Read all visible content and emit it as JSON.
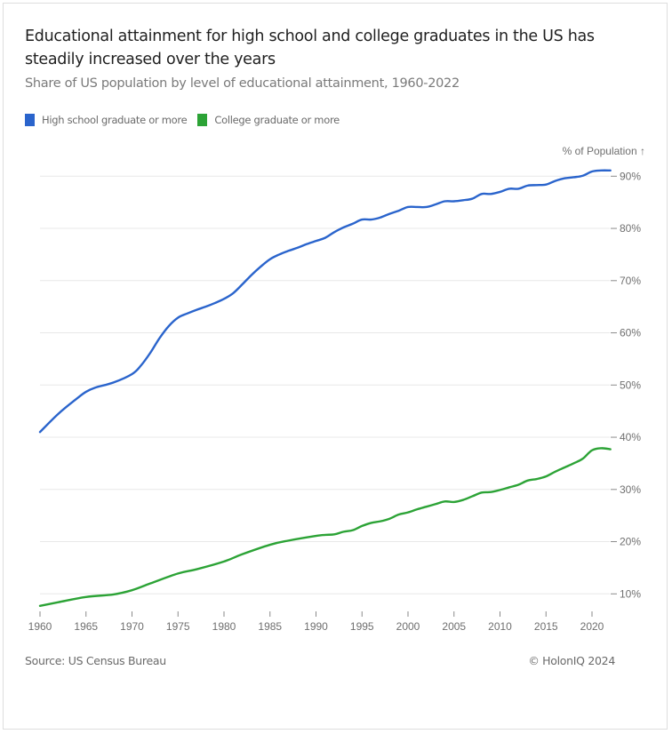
{
  "header": {
    "title": "Educational attainment for high school and college graduates in the US has steadily increased over the years",
    "subtitle": "Share of US population by level of educational attainment, 1960-2022"
  },
  "legend": [
    {
      "label": "High school graduate or more",
      "color": "#2a64cc"
    },
    {
      "label": "College graduate or more",
      "color": "#2ca336"
    }
  ],
  "footer": {
    "source": "Source: US Census Bureau",
    "copyright": "© HolonIQ 2024"
  },
  "chart_data": {
    "type": "line",
    "title": "Educational attainment for high school and college graduates in the US has steadily increased over the years",
    "subtitle": "Share of US population by level of educational attainment, 1960-2022",
    "xlabel": "",
    "ylabel": "% of Population ↑",
    "xlim": [
      1960,
      2022
    ],
    "ylim": [
      7,
      92
    ],
    "x_ticks": [
      1960,
      1965,
      1970,
      1975,
      1980,
      1985,
      1990,
      1995,
      2000,
      2005,
      2010,
      2015,
      2020
    ],
    "y_ticks": [
      10,
      20,
      30,
      40,
      50,
      60,
      70,
      80,
      90
    ],
    "y_tick_suffix": "%",
    "y_axis_position": "right",
    "grid": true,
    "legend_position": "top-left",
    "series": [
      {
        "name": "High school graduate or more",
        "color": "#2a64cc",
        "x": [
          1960,
          1962,
          1964,
          1965,
          1966,
          1968,
          1970,
          1971,
          1972,
          1973,
          1974,
          1975,
          1976,
          1977,
          1978,
          1979,
          1980,
          1981,
          1982,
          1983,
          1984,
          1985,
          1986,
          1987,
          1988,
          1989,
          1990,
          1991,
          1992,
          1993,
          1994,
          1995,
          1996,
          1997,
          1998,
          1999,
          2000,
          2001,
          2002,
          2003,
          2004,
          2005,
          2006,
          2007,
          2008,
          2009,
          2010,
          2011,
          2012,
          2013,
          2014,
          2015,
          2016,
          2017,
          2018,
          2019,
          2020,
          2021,
          2022
        ],
        "values": [
          41.0,
          44.5,
          47.4,
          48.7,
          49.5,
          50.5,
          52.1,
          53.8,
          56.2,
          59.0,
          61.3,
          62.9,
          63.7,
          64.4,
          65.0,
          65.7,
          66.5,
          67.6,
          69.3,
          71.1,
          72.7,
          74.1,
          75.0,
          75.7,
          76.3,
          77.0,
          77.6,
          78.2,
          79.3,
          80.2,
          80.9,
          81.7,
          81.7,
          82.1,
          82.8,
          83.4,
          84.1,
          84.1,
          84.1,
          84.6,
          85.2,
          85.2,
          85.4,
          85.7,
          86.6,
          86.6,
          87.0,
          87.6,
          87.6,
          88.2,
          88.3,
          88.4,
          89.1,
          89.6,
          89.8,
          90.1,
          90.9,
          91.1,
          91.1
        ]
      },
      {
        "name": "College graduate or more",
        "color": "#2ca336",
        "x": [
          1960,
          1962,
          1965,
          1968,
          1970,
          1972,
          1975,
          1977,
          1980,
          1982,
          1985,
          1987,
          1990,
          1991,
          1992,
          1993,
          1994,
          1995,
          1996,
          1997,
          1998,
          1999,
          2000,
          2001,
          2002,
          2003,
          2004,
          2005,
          2006,
          2007,
          2008,
          2009,
          2010,
          2011,
          2012,
          2013,
          2014,
          2015,
          2016,
          2017,
          2018,
          2019,
          2020,
          2021,
          2022
        ],
        "values": [
          7.7,
          8.4,
          9.4,
          9.9,
          10.7,
          12.0,
          13.9,
          14.7,
          16.2,
          17.6,
          19.4,
          20.2,
          21.1,
          21.3,
          21.4,
          21.9,
          22.2,
          23.0,
          23.6,
          23.9,
          24.4,
          25.2,
          25.6,
          26.2,
          26.7,
          27.2,
          27.7,
          27.6,
          28.0,
          28.7,
          29.4,
          29.5,
          29.9,
          30.4,
          30.9,
          31.7,
          32.0,
          32.5,
          33.4,
          34.2,
          35.0,
          35.9,
          37.5,
          37.9,
          37.7
        ]
      }
    ]
  }
}
